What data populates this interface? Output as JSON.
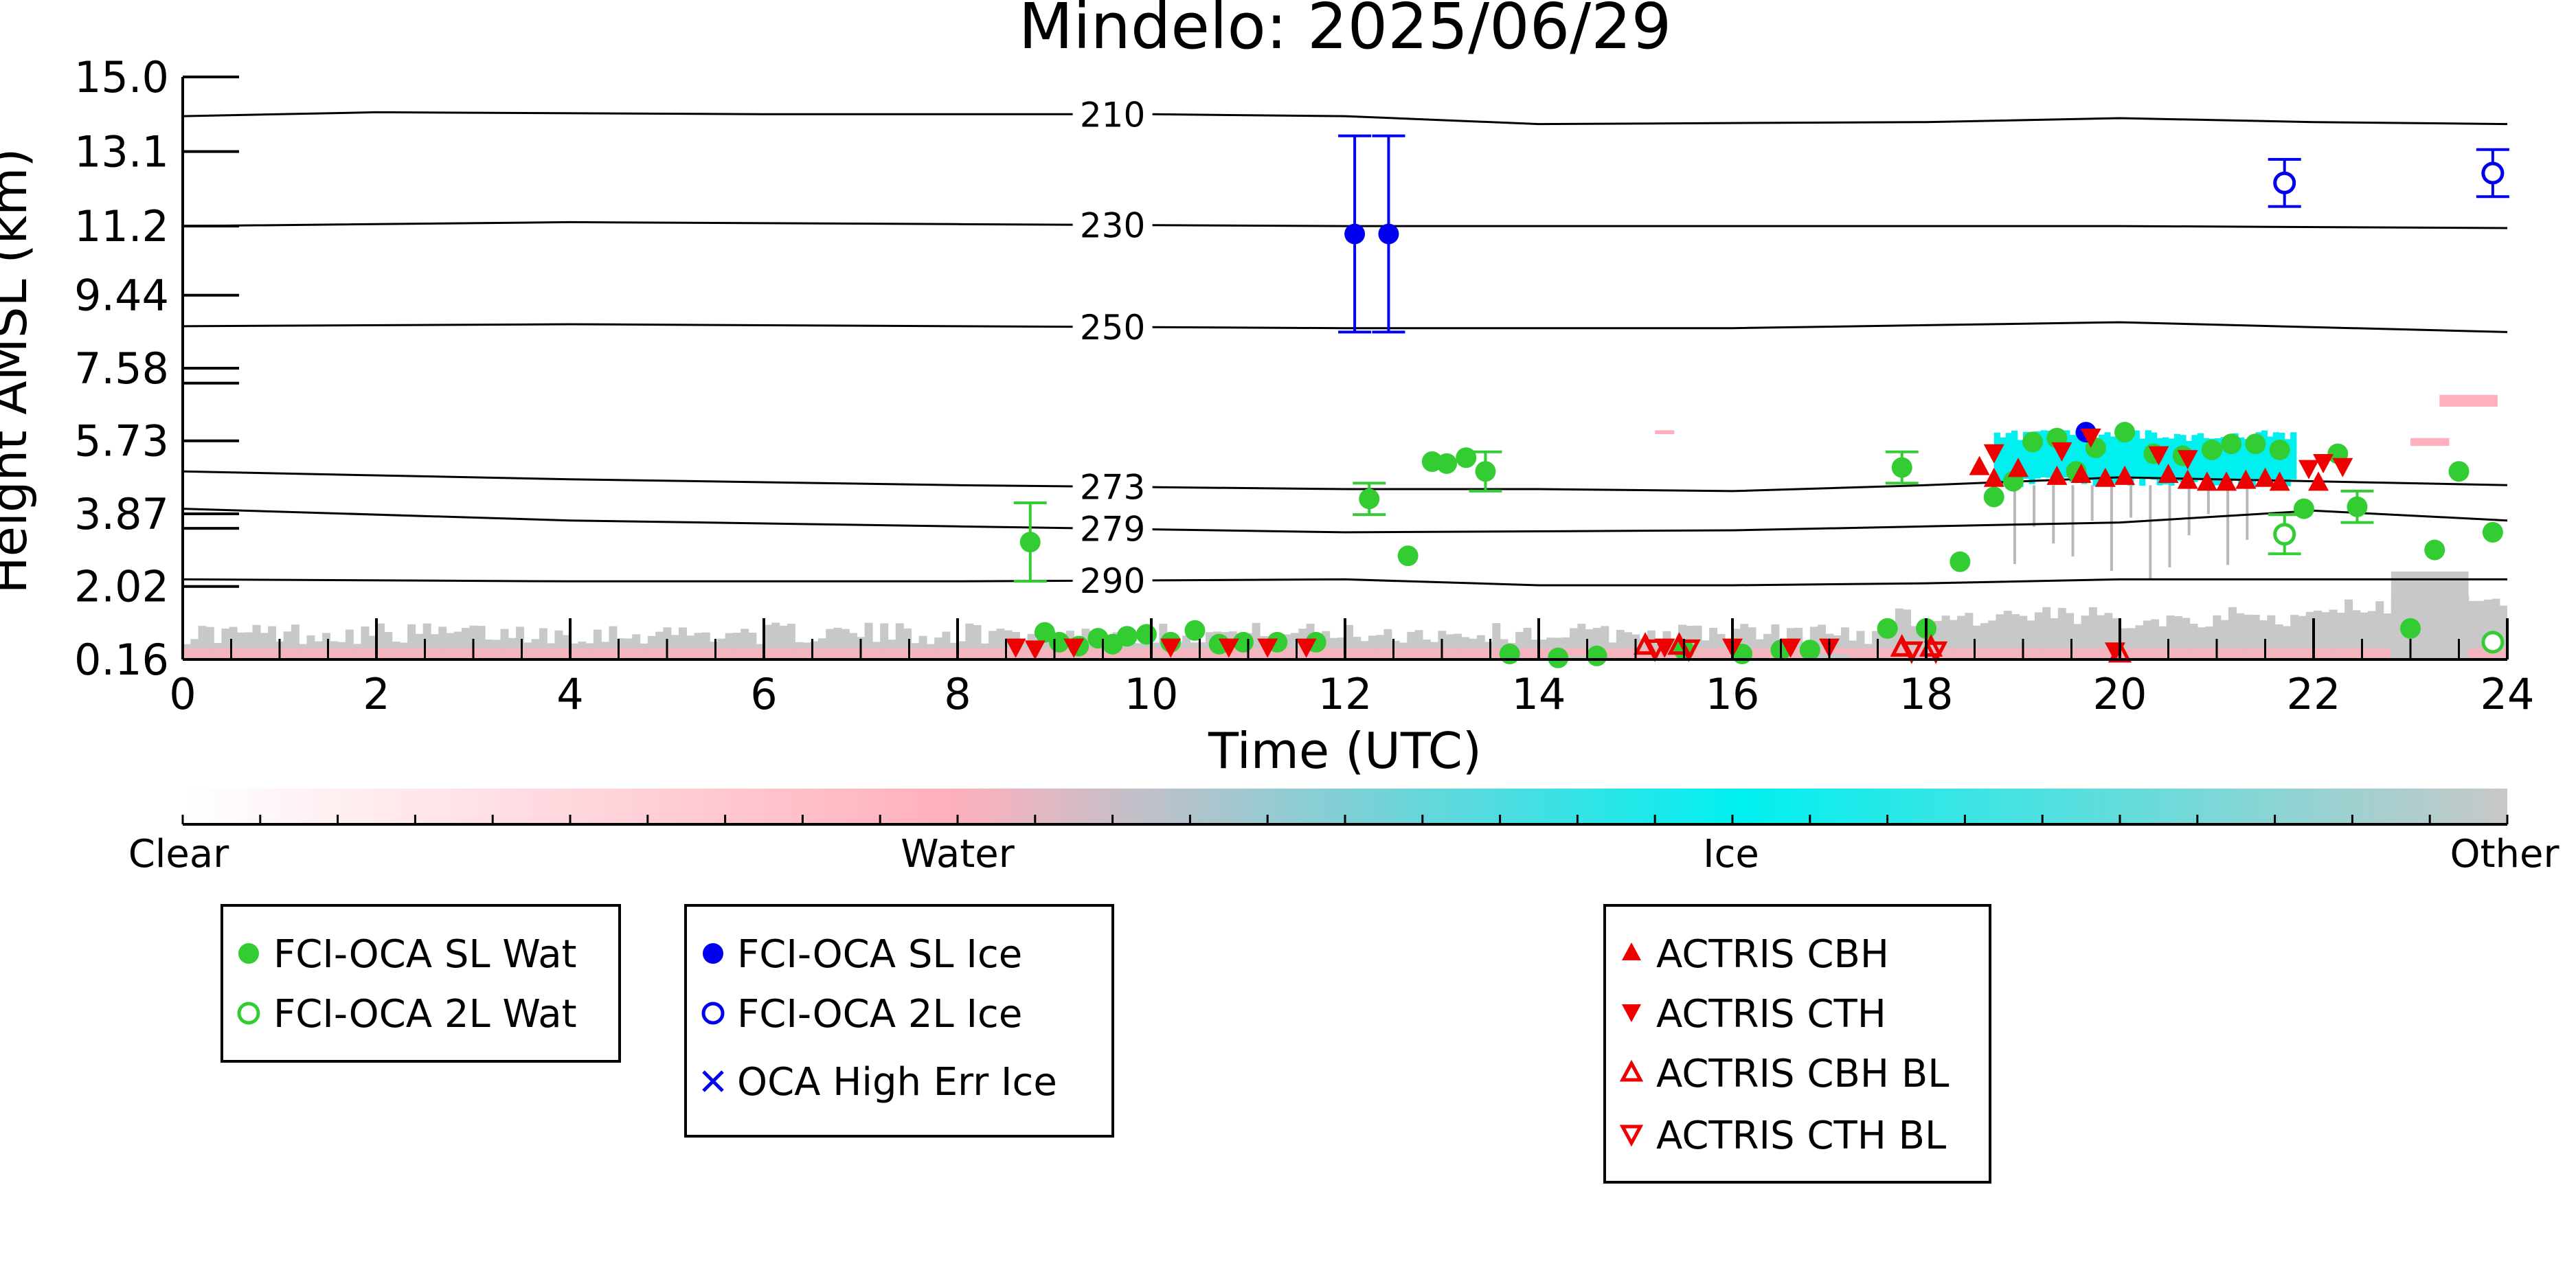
{
  "chart_data": {
    "type": "scatter",
    "title": "Mindelo: 2025/06/29",
    "xlabel": "Time (UTC)",
    "ylabel": "Height AMSL (km)",
    "xlim": [
      0,
      24
    ],
    "ylim": [
      0.16,
      15.0
    ],
    "x_ticks": [
      "0",
      "2",
      "4",
      "6",
      "8",
      "10",
      "12",
      "14",
      "16",
      "18",
      "20",
      "22",
      "24"
    ],
    "y_ticks": [
      "15.0",
      "13.1",
      "11.2",
      "9.44",
      "7.58",
      "5.73",
      "3.87",
      "2.02",
      "0.16"
    ],
    "y_tick_values": [
      15.0,
      13.1,
      11.2,
      9.44,
      7.58,
      5.73,
      3.87,
      2.02,
      0.16
    ],
    "temperature_contours": [
      {
        "label": "210",
        "label_x": 9.6,
        "points": [
          [
            0,
            14.0
          ],
          [
            2,
            14.1
          ],
          [
            6,
            14.05
          ],
          [
            10,
            14.05
          ],
          [
            12,
            14.0
          ],
          [
            14,
            13.8
          ],
          [
            18,
            13.85
          ],
          [
            20,
            13.95
          ],
          [
            22,
            13.85
          ],
          [
            24,
            13.8
          ]
        ]
      },
      {
        "label": "230",
        "label_x": 9.6,
        "points": [
          [
            0,
            11.2
          ],
          [
            4,
            11.3
          ],
          [
            8,
            11.25
          ],
          [
            12,
            11.2
          ],
          [
            16,
            11.2
          ],
          [
            20,
            11.2
          ],
          [
            24,
            11.15
          ]
        ]
      },
      {
        "label": "250",
        "label_x": 9.6,
        "points": [
          [
            0,
            8.65
          ],
          [
            4,
            8.7
          ],
          [
            8,
            8.65
          ],
          [
            12,
            8.6
          ],
          [
            16,
            8.6
          ],
          [
            20,
            8.75
          ],
          [
            24,
            8.5
          ]
        ]
      },
      {
        "label": "273",
        "label_x": 9.6,
        "points": [
          [
            0,
            4.95
          ],
          [
            4,
            4.75
          ],
          [
            8,
            4.6
          ],
          [
            12,
            4.5
          ],
          [
            14,
            4.5
          ],
          [
            16,
            4.45
          ],
          [
            18,
            4.6
          ],
          [
            20,
            4.8
          ],
          [
            24,
            4.6
          ]
        ]
      },
      {
        "label": "279",
        "label_x": 9.6,
        "points": [
          [
            0,
            4.0
          ],
          [
            4,
            3.7
          ],
          [
            8,
            3.55
          ],
          [
            12,
            3.4
          ],
          [
            16,
            3.45
          ],
          [
            18,
            3.55
          ],
          [
            20,
            3.65
          ],
          [
            22,
            3.95
          ],
          [
            24,
            3.7
          ]
        ]
      },
      {
        "label": "290",
        "label_x": 9.6,
        "points": [
          [
            0,
            2.2
          ],
          [
            4,
            2.15
          ],
          [
            8,
            2.15
          ],
          [
            12,
            2.2
          ],
          [
            14,
            2.05
          ],
          [
            16,
            2.05
          ],
          [
            18,
            2.1
          ],
          [
            20,
            2.2
          ],
          [
            22,
            2.2
          ],
          [
            24,
            2.2
          ]
        ]
      }
    ],
    "series": [
      {
        "name": "FCI-OCA SL Wat",
        "color": "#33cc33",
        "marker": "circle-filled",
        "points": [
          [
            8.75,
            3.15,
            1.0
          ],
          [
            8.9,
            0.85,
            0
          ],
          [
            9.05,
            0.6,
            0
          ],
          [
            9.25,
            0.5,
            0
          ],
          [
            9.45,
            0.7,
            0
          ],
          [
            9.6,
            0.55,
            0
          ],
          [
            9.75,
            0.75,
            0
          ],
          [
            9.95,
            0.8,
            0
          ],
          [
            10.2,
            0.6,
            0
          ],
          [
            10.45,
            0.9,
            0
          ],
          [
            10.7,
            0.55,
            0
          ],
          [
            10.95,
            0.6,
            0
          ],
          [
            11.3,
            0.6,
            0
          ],
          [
            11.7,
            0.6,
            0
          ],
          [
            12.25,
            4.25,
            0.4
          ],
          [
            12.65,
            2.8,
            0
          ],
          [
            12.9,
            5.2,
            0
          ],
          [
            13.05,
            5.15,
            0
          ],
          [
            13.25,
            5.3,
            0
          ],
          [
            13.45,
            4.95,
            0.5
          ],
          [
            13.7,
            0.3,
            0
          ],
          [
            14.2,
            0.2,
            0
          ],
          [
            14.6,
            0.25,
            0
          ],
          [
            15.5,
            0.4,
            0
          ],
          [
            16.1,
            0.3,
            0
          ],
          [
            16.5,
            0.4,
            0
          ],
          [
            16.8,
            0.4,
            0
          ],
          [
            17.6,
            0.95,
            0
          ],
          [
            18.0,
            0.95,
            0
          ],
          [
            17.75,
            5.05,
            0.4
          ],
          [
            18.35,
            2.65,
            0
          ],
          [
            18.7,
            4.3,
            0
          ],
          [
            18.9,
            4.7,
            0
          ],
          [
            19.1,
            5.7,
            0
          ],
          [
            19.35,
            5.8,
            0
          ],
          [
            19.55,
            4.95,
            0
          ],
          [
            19.75,
            5.55,
            0
          ],
          [
            20.05,
            5.95,
            0
          ],
          [
            20.35,
            5.4,
            0
          ],
          [
            20.65,
            5.35,
            0
          ],
          [
            20.95,
            5.5,
            0
          ],
          [
            21.15,
            5.65,
            0
          ],
          [
            21.4,
            5.65,
            0
          ],
          [
            21.65,
            5.5,
            0
          ],
          [
            21.9,
            4.0,
            0
          ],
          [
            22.25,
            5.4,
            0
          ],
          [
            22.45,
            4.05,
            0.4
          ],
          [
            23.0,
            0.95,
            0
          ],
          [
            23.25,
            2.95,
            0
          ],
          [
            23.5,
            4.95,
            0
          ],
          [
            23.85,
            3.4,
            0
          ]
        ]
      },
      {
        "name": "FCI-OCA 2L Wat",
        "color": "#33cc33",
        "marker": "circle-open",
        "points": [
          [
            21.7,
            3.35,
            0.5
          ],
          [
            23.85,
            0.6,
            0
          ]
        ]
      },
      {
        "name": "FCI-OCA SL Ice",
        "color": "#0000ee",
        "marker": "circle-filled",
        "points": [
          [
            12.1,
            11.0,
            2.5
          ],
          [
            12.45,
            11.0,
            2.5
          ],
          [
            19.65,
            5.95,
            0
          ]
        ]
      },
      {
        "name": "FCI-OCA 2L Ice",
        "color": "#0000ee",
        "marker": "circle-open",
        "points": [
          [
            21.7,
            12.3,
            0.6
          ],
          [
            23.85,
            12.55,
            0.6
          ]
        ]
      },
      {
        "name": "OCA High Err Ice",
        "color": "#0000ee",
        "marker": "x",
        "points": []
      },
      {
        "name": "ACTRIS CBH",
        "color": "#ee0000",
        "marker": "triangle-up-filled",
        "points": [
          [
            18.55,
            5.05
          ],
          [
            18.7,
            4.75
          ],
          [
            18.95,
            5.0
          ],
          [
            19.35,
            4.8
          ],
          [
            19.6,
            4.85
          ],
          [
            19.85,
            4.75
          ],
          [
            20.05,
            4.8
          ],
          [
            20.5,
            4.85
          ],
          [
            20.7,
            4.7
          ],
          [
            20.9,
            4.65
          ],
          [
            21.1,
            4.65
          ],
          [
            21.3,
            4.7
          ],
          [
            21.5,
            4.75
          ],
          [
            21.65,
            4.65
          ],
          [
            22.05,
            4.65
          ]
        ]
      },
      {
        "name": "ACTRIS CTH",
        "color": "#ee0000",
        "marker": "triangle-down-filled",
        "points": [
          [
            8.6,
            0.5
          ],
          [
            8.8,
            0.45
          ],
          [
            9.2,
            0.5
          ],
          [
            10.2,
            0.5
          ],
          [
            10.8,
            0.5
          ],
          [
            11.2,
            0.5
          ],
          [
            11.6,
            0.5
          ],
          [
            15.3,
            0.5
          ],
          [
            16.0,
            0.5
          ],
          [
            16.6,
            0.5
          ],
          [
            17.0,
            0.5
          ],
          [
            18.7,
            5.45
          ],
          [
            19.4,
            5.5
          ],
          [
            19.7,
            5.85
          ],
          [
            20.4,
            5.4
          ],
          [
            20.7,
            5.3
          ],
          [
            21.95,
            5.05
          ],
          [
            22.1,
            5.2
          ],
          [
            22.3,
            5.1
          ],
          [
            19.95,
            0.4
          ]
        ]
      },
      {
        "name": "ACTRIS CBH BL",
        "color": "#ee0000",
        "marker": "triangle-up-open",
        "points": [
          [
            15.1,
            0.5
          ],
          [
            15.45,
            0.5
          ],
          [
            17.75,
            0.45
          ],
          [
            18.05,
            0.45
          ],
          [
            20.0,
            0.3
          ]
        ]
      },
      {
        "name": "ACTRIS CTH BL",
        "color": "#ee0000",
        "marker": "triangle-down-open",
        "points": [
          [
            15.2,
            0.45
          ],
          [
            15.55,
            0.45
          ],
          [
            17.85,
            0.4
          ],
          [
            18.1,
            0.4
          ]
        ]
      }
    ],
    "colorbar": {
      "labels": [
        "Clear",
        "Water",
        "Ice",
        "Other"
      ],
      "colors": [
        "#ffffff",
        "#ffb0bc",
        "#00f0f0",
        "#c8c8c8"
      ]
    },
    "legends": [
      [
        "FCI-OCA SL Wat",
        "FCI-OCA 2L Wat"
      ],
      [
        "FCI-OCA SL Ice",
        "FCI-OCA 2L Ice",
        "OCA High Err Ice"
      ],
      [
        "ACTRIS CBH",
        "ACTRIS CTH",
        "ACTRIS CBH BL",
        "ACTRIS CTH BL"
      ]
    ]
  }
}
